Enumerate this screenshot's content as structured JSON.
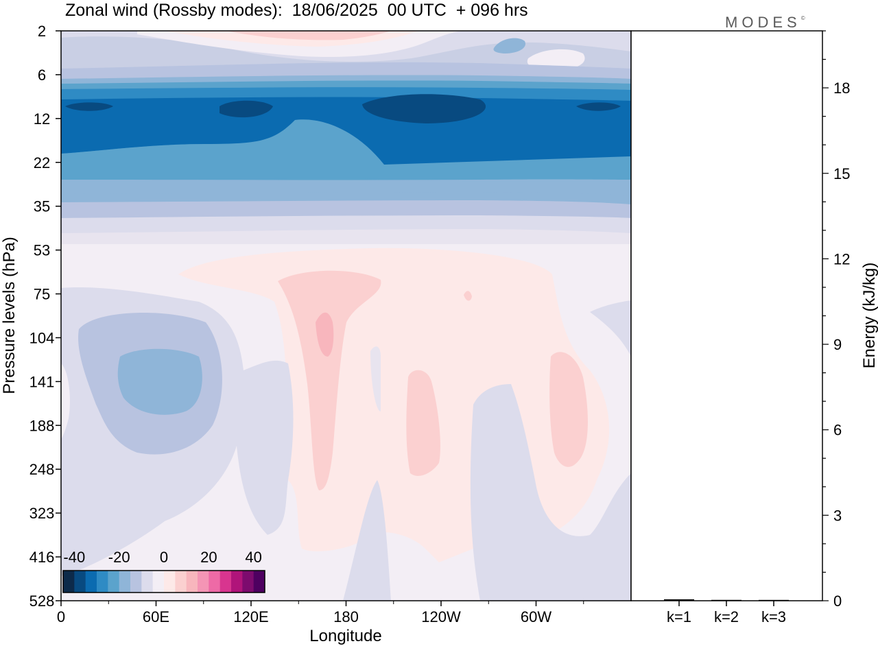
{
  "title": "Zonal wind (Rossby modes):  18/06/2025  00 UTC  + 096 hrs",
  "logo_text": "MODES",
  "logo_mark": "©",
  "chart_data": [
    {
      "type": "heatmap",
      "name": "zonal-wind-section",
      "xlabel": "Longitude",
      "ylabel": "Pressure levels (hPa)",
      "x_ticks": [
        "0",
        "60E",
        "120E",
        "180",
        "120W",
        "60W"
      ],
      "y_ticks": [
        "2",
        "6",
        "12",
        "22",
        "35",
        "53",
        "75",
        "104",
        "141",
        "188",
        "248",
        "323",
        "416",
        "528"
      ],
      "colorbar": {
        "labels": [
          "-40",
          "-20",
          "0",
          "20",
          "40"
        ],
        "colors": [
          "#0d2a4a",
          "#084a80",
          "#0b6bb0",
          "#2f8bc4",
          "#5ba3cc",
          "#8fb5d8",
          "#b8c3e0",
          "#dcdcec",
          "#f3eef5",
          "#fde9e8",
          "#fbd0d0",
          "#f8b6bd",
          "#f495b5",
          "#ee6aa6",
          "#d8358f",
          "#b0147a",
          "#7d0b6e",
          "#4e0060"
        ]
      },
      "approx_values_m_s": {
        "upper_strat_2_6hPa": "-5 to +10",
        "jet_8_20hPa": "-30 to -40",
        "band_22_35hPa": "-20 to -25",
        "trop_positive_near_180": "+10 to +15",
        "trop_negative_near_60E": "-10 to -15"
      }
    },
    {
      "type": "bar",
      "name": "energy",
      "categories": [
        "k=1",
        "k=2",
        "k=3"
      ],
      "values": [
        0.05,
        0.03,
        0.02
      ],
      "ylabel": "Energy (kJ/kg)",
      "ylim": [
        0,
        20
      ],
      "y_ticks": [
        "0",
        "3",
        "6",
        "9",
        "12",
        "15",
        "18"
      ]
    }
  ]
}
